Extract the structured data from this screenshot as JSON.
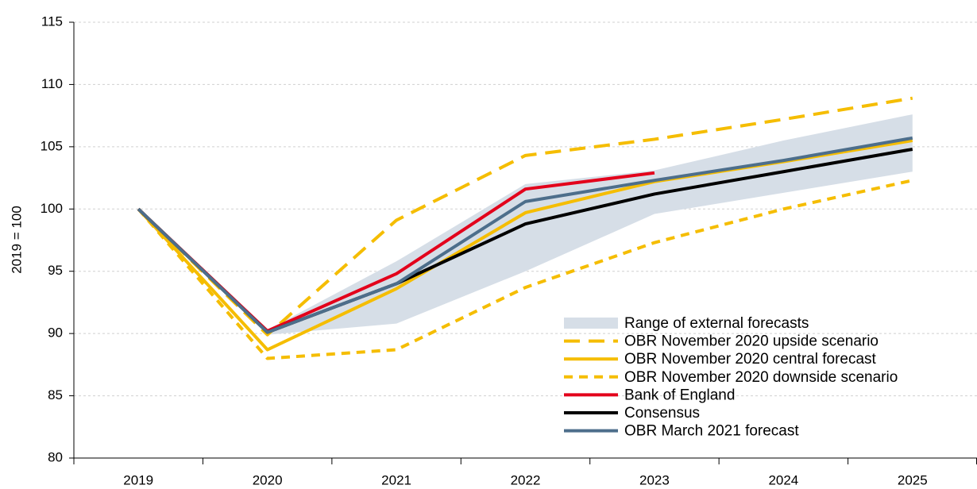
{
  "chart_data": {
    "type": "line",
    "y_label": "2019 = 100",
    "categories": [
      "2019",
      "2020",
      "2021",
      "2022",
      "2023",
      "2024",
      "2025"
    ],
    "ylim": [
      80,
      115
    ],
    "yticks": [
      80,
      85,
      90,
      95,
      100,
      105,
      110,
      115
    ],
    "grid": true,
    "legend": "lower right",
    "series": [
      {
        "name": "Range of external forecasts",
        "type": "band",
        "color": "#d6dee7",
        "lower": [
          null,
          89.9,
          90.8,
          95.0,
          99.6,
          101.3,
          103.0
        ],
        "upper": [
          null,
          90.3,
          95.8,
          102.0,
          103.1,
          105.5,
          107.6
        ]
      },
      {
        "name": "OBR November 2020 upside scenario",
        "color": "#f5bd00",
        "dash": "long",
        "values": [
          100,
          89.9,
          99.1,
          104.3,
          105.6,
          107.2,
          108.9
        ]
      },
      {
        "name": "OBR November 2020 central forecast",
        "color": "#f5bd00",
        "values": [
          100,
          88.7,
          93.6,
          99.7,
          102.2,
          103.8,
          105.5
        ]
      },
      {
        "name": "OBR November 2020 downside scenario",
        "color": "#f5bd00",
        "dash": "short",
        "values": [
          100,
          88.0,
          88.7,
          93.7,
          97.3,
          100.0,
          102.3
        ]
      },
      {
        "name": "Bank of England",
        "color": "#e3001b",
        "values": [
          100,
          90.2,
          94.8,
          101.6,
          102.9,
          null,
          null
        ]
      },
      {
        "name": "Consensus",
        "color": "#000000",
        "values": [
          100,
          90.1,
          94.0,
          98.8,
          101.2,
          103.0,
          104.8
        ]
      },
      {
        "name": "OBR March 2021 forecast",
        "color": "#4d6e8b",
        "values": [
          100,
          90.1,
          94.0,
          100.6,
          102.3,
          103.9,
          105.7
        ]
      }
    ]
  }
}
